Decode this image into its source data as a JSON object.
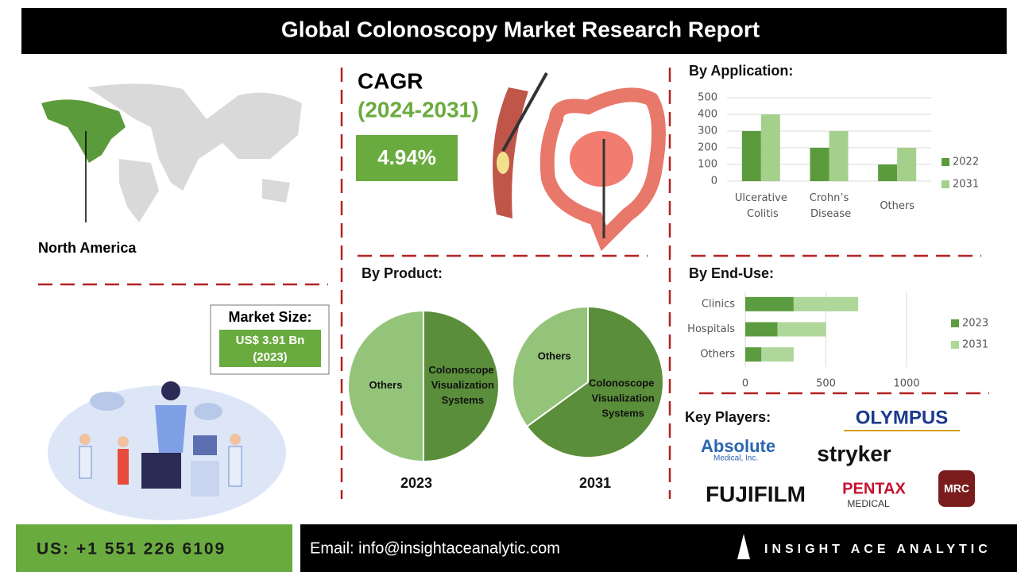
{
  "title": "Global Colonoscopy Market Research Report",
  "cagr": {
    "label": "CAGR",
    "period": "(2024-2031)",
    "value": "4.94%"
  },
  "region": "North America",
  "market_size": {
    "label": "Market Size:",
    "value": "US$ 3.91 Bn",
    "year": "(2023)"
  },
  "product_heading": "By Product:",
  "key_players": {
    "heading": "Key Players:",
    "names": [
      "OLYMPUS",
      "Absolute",
      "Medical, Inc.",
      "stryker",
      "FUJIFILM",
      "PENTAX",
      "MEDICAL",
      "MRC"
    ]
  },
  "footer": {
    "phone": "US: +1 551 226 6109",
    "email": "Email: info@insightaceanalytic.com",
    "brand": "INSIGHT ACE ANALYTIC"
  },
  "chart_data": [
    {
      "type": "bar",
      "title": "By Application:",
      "categories": [
        "Ulcerative Colitis",
        "Crohn’s Disease",
        "Others"
      ],
      "series": [
        {
          "name": "2022",
          "color": "#5b9b3c",
          "values": [
            300,
            200,
            100
          ]
        },
        {
          "name": "2031",
          "color": "#a5d08c",
          "values": [
            400,
            300,
            200
          ]
        }
      ],
      "ylim": [
        0,
        500
      ],
      "yticks": [
        0,
        100,
        200,
        300,
        400,
        500
      ],
      "grid": true,
      "legend": "right"
    },
    {
      "type": "hbar",
      "title": "By End-Use:",
      "categories": [
        "Clinics",
        "Hospitals",
        "Others"
      ],
      "stacked": true,
      "series": [
        {
          "name": "2023",
          "color": "#5c9c40",
          "values": [
            300,
            200,
            100
          ]
        },
        {
          "name": "2031",
          "color": "#b0d79a",
          "values": [
            400,
            300,
            200
          ]
        }
      ],
      "xlim": [
        0,
        1000
      ],
      "xticks": [
        0,
        500,
        1000
      ],
      "grid": true,
      "legend": "right"
    },
    {
      "type": "pie",
      "title": "2023",
      "categories": [
        "Colonoscope Visualization Systems",
        "Others"
      ],
      "values": [
        50,
        50
      ],
      "colors": [
        "#5a8e3a",
        "#94c47a"
      ]
    },
    {
      "type": "pie",
      "title": "2031",
      "categories": [
        "Colonoscope Visualization Systems",
        "Others"
      ],
      "values": [
        65,
        35
      ],
      "colors": [
        "#5a8e3a",
        "#94c47a"
      ]
    }
  ]
}
